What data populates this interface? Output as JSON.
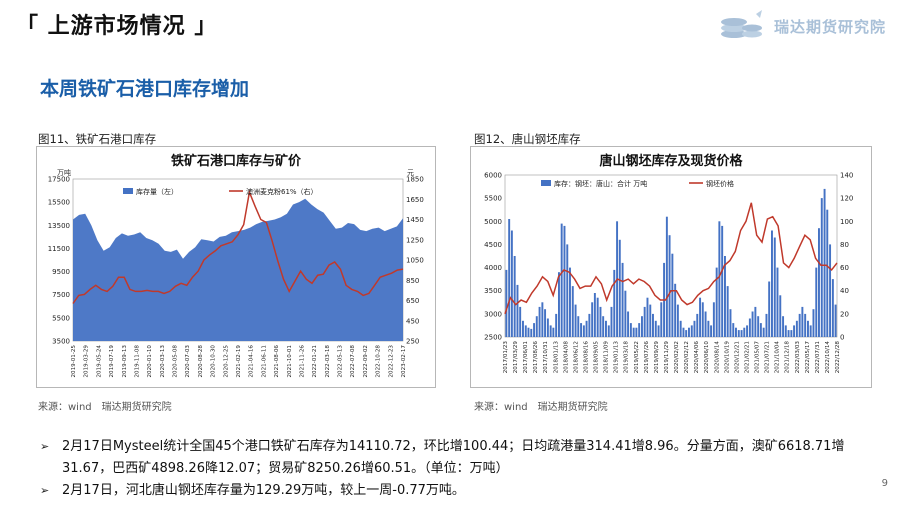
{
  "page": {
    "section_title": "「 上游市场情况 」",
    "subtitle": "本周铁矿石港口库存增加",
    "logo_text": "瑞达期货研究院",
    "page_number": "9"
  },
  "figures": [
    {
      "caption": "图11、铁矿石港口库存",
      "source": "来源：wind　瑞达期货研究院"
    },
    {
      "caption": "图12、唐山钢坯库存",
      "source": "来源：wind　瑞达期货研究院"
    }
  ],
  "bullets": [
    "2月17日Mysteel统计全国45个港口铁矿石库存为14110.72，环比增100.44；日均疏港量314.41增8.96。分量方面，澳矿6618.71增31.67，巴西矿4898.26降12.07；贸易矿8250.26增60.51。（单位：万吨）",
    "2月17日，河北唐山钢坯库存量为129.29万吨，较上一周-0.77万吨。"
  ],
  "chart_data": [
    {
      "type": "area",
      "title": "铁矿石港口库存与矿价",
      "left_unit": "万吨",
      "right_unit": "元",
      "legend": [
        "库存量（左）",
        "澳洲麦克粉61%（右）"
      ],
      "legend_position": "top",
      "y_left_ticks": [
        3500,
        5500,
        7500,
        9500,
        11500,
        13500,
        15500,
        17500
      ],
      "y_left_lim": [
        3500,
        17500
      ],
      "y_right_ticks": [
        250,
        450,
        650,
        850,
        1050,
        1250,
        1450,
        1650,
        1850
      ],
      "y_right_lim": [
        250,
        1850
      ],
      "x_ticks": [
        "2019-01-25",
        "2019-03-29",
        "2019-05-24",
        "2019-07-19",
        "2019-09-13",
        "2019-11-08",
        "2020-01-10",
        "2020-03-13",
        "2020-05-08",
        "2020-07-03",
        "2020-08-28",
        "2020-10-30",
        "2020-12-25",
        "2021-02-19",
        "2021-04-16",
        "2021-06-11",
        "2021-08-06",
        "2021-10-01",
        "2021-11-26",
        "2022-01-21",
        "2022-03-18",
        "2022-05-13",
        "2022-07-08",
        "2022-09-02",
        "2022-10-28",
        "2022-12-23",
        "2023-02-17"
      ],
      "series": [
        {
          "name": "库存量（左）",
          "color": "#4472c4",
          "values": [
            14000,
            14400,
            14500,
            13500,
            12200,
            11300,
            11600,
            12400,
            12800,
            12600,
            12700,
            12900,
            12400,
            12200,
            11900,
            11300,
            11200,
            11400,
            10600,
            11200,
            11600,
            12300,
            12200,
            12100,
            12500,
            12600,
            12900,
            13000,
            13100,
            13300,
            13600,
            13800,
            13900,
            14000,
            14200,
            14500,
            15300,
            15500,
            15800,
            15300,
            14900,
            14600,
            13900,
            13200,
            13300,
            13700,
            13600,
            13100,
            13000,
            13200,
            13300,
            13000,
            13200,
            13400,
            14100
          ]
        },
        {
          "name": "澳洲麦克粉61%（右）",
          "color": "#c0392b",
          "values": [
            620,
            700,
            710,
            760,
            800,
            760,
            740,
            790,
            880,
            880,
            760,
            740,
            740,
            750,
            740,
            740,
            720,
            740,
            790,
            820,
            800,
            880,
            940,
            1050,
            1100,
            1140,
            1190,
            1210,
            1230,
            1300,
            1400,
            1720,
            1580,
            1450,
            1420,
            1240,
            1040,
            860,
            740,
            840,
            940,
            860,
            820,
            900,
            910,
            1000,
            1030,
            960,
            800,
            760,
            740,
            700,
            720,
            800,
            880,
            900,
            920,
            950,
            960
          ]
        }
      ]
    },
    {
      "type": "bar",
      "title": "唐山钢坯库存及现货价格",
      "legend": [
        "库存：钢坯：唐山：合计  万吨",
        "钢坯价格"
      ],
      "legend_position": "top",
      "y_left_ticks": [
        2500,
        3000,
        3500,
        4000,
        4500,
        5000,
        5500,
        6000
      ],
      "y_left_lim": [
        2500,
        6000
      ],
      "y_right_ticks": [
        0,
        20,
        40,
        60,
        80,
        100,
        120,
        140
      ],
      "y_right_lim": [
        0,
        140
      ],
      "x_ticks": [
        "2017/01/23",
        "2017/03/29",
        "2017/06/01",
        "2017/08/26",
        "2017/10/31",
        "2018/01/13",
        "2018/04/08",
        "2018/06/12",
        "2018/08/16",
        "2018/09/05",
        "2018/11/09",
        "2019/01/13",
        "2019/03/18",
        "2019/05/22",
        "2019/07/26",
        "2019/09/29",
        "2019/11/29",
        "2020/02/02",
        "2020/02/12",
        "2020/04/06",
        "2020/06/10",
        "2020/08/14",
        "2020/10/19",
        "2020/12/21",
        "2021/02/21",
        "2021/05/07",
        "2021/07/21",
        "2021/10/04",
        "2021/12/18",
        "2022/03/03",
        "2022/05/17",
        "2022/07/31",
        "2022/10/14",
        "2022/12/28"
      ],
      "series": [
        {
          "name": "库存：钢坯：唐山：合计  万吨",
          "color": "#4472c4",
          "values": [
            58,
            102,
            92,
            70,
            45,
            26,
            14,
            10,
            8,
            7,
            12,
            18,
            26,
            30,
            24,
            16,
            10,
            8,
            20,
            56,
            98,
            96,
            80,
            60,
            44,
            28,
            18,
            12,
            10,
            14,
            20,
            30,
            38,
            34,
            26,
            18,
            14,
            10,
            26,
            58,
            100,
            84,
            64,
            40,
            22,
            12,
            8,
            8,
            12,
            18,
            26,
            34,
            28,
            20,
            14,
            10,
            30,
            64,
            104,
            88,
            72,
            46,
            28,
            14,
            8,
            6,
            8,
            10,
            14,
            20,
            34,
            30,
            22,
            14,
            10,
            30,
            60,
            100,
            96,
            70,
            44,
            24,
            12,
            8,
            6,
            6,
            8,
            10,
            16,
            22,
            26,
            18,
            12,
            8,
            20,
            48,
            92,
            86,
            60,
            36,
            18,
            10,
            6,
            6,
            10,
            14,
            20,
            26,
            20,
            14,
            10,
            24,
            60,
            94,
            120,
            128,
            110,
            80,
            50,
            28
          ]
        },
        {
          "name": "钢坯价格",
          "color": "#c0392b",
          "values": [
            3000,
            3350,
            3200,
            3300,
            3250,
            3450,
            3600,
            3800,
            3700,
            3400,
            3800,
            3950,
            3900,
            3750,
            3550,
            3600,
            3600,
            3800,
            3650,
            3300,
            3600,
            3750,
            3700,
            3750,
            3650,
            3750,
            3700,
            3600,
            3400,
            3300,
            3300,
            3500,
            3500,
            3300,
            3200,
            3250,
            3400,
            3500,
            3550,
            3700,
            3800,
            4050,
            4150,
            4350,
            4800,
            5000,
            5400,
            4700,
            4550,
            5050,
            5100,
            4900,
            4100,
            4000,
            4200,
            4450,
            4700,
            4600,
            4200,
            4050,
            4050,
            3950,
            4100
          ]
        }
      ]
    }
  ]
}
